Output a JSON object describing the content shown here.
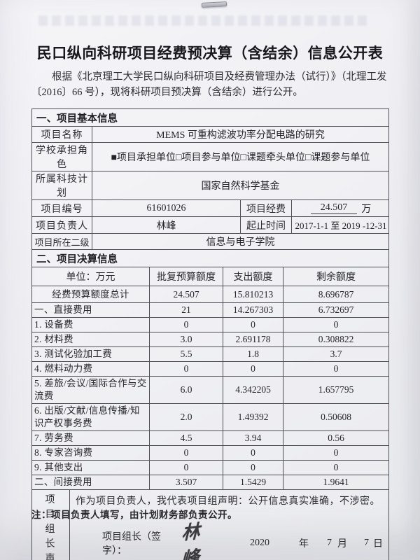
{
  "page": {
    "title": "民口纵向科研项目经费预决算（含结余）信息公开表",
    "intro": "根据《北京理工大学民口纵向科研项目及经费管理办法（试行）》（北理工发〔2016〕66 号），现将科研项目预决算（含结余）进行公开。",
    "footnote": "注：项目负责人填写，由计划财务部负责公开。"
  },
  "colors": {
    "paper": "#efeff3",
    "border": "#4e4e56",
    "ink": "#26262b"
  },
  "basic_info": {
    "section_title": "一、项目基本信息",
    "fields": {
      "project_name_label": "项目名称",
      "project_name": "MEMS 可重构滤波功率分配电路的研究",
      "school_role_label": "学校承担角色",
      "school_role": "■项目承担单位□项目参与单位□课题牵头单位□课题参与单位",
      "school_role_options": [
        {
          "checked": true,
          "label": "项目承担单位"
        },
        {
          "checked": false,
          "label": "项目参与单位"
        },
        {
          "checked": false,
          "label": "课题牵头单位"
        },
        {
          "checked": false,
          "label": "课题参与单位"
        }
      ],
      "program_label": "所属科技计划",
      "program": "国家自然科学基金",
      "project_no_label": "项目编号",
      "project_no": "61601026",
      "funding_label": "项目经费",
      "funding_value": "24.507",
      "funding_unit": "万",
      "pi_label": "项目负责人",
      "pi": "林峰",
      "duration_label": "起止时间",
      "duration": "2017-1-1 至 2019 -12-31",
      "dept_label": "项目所在二级",
      "dept": "信息与电子学院"
    }
  },
  "budget": {
    "section_title": "二、项目决算信息",
    "headers": [
      "单位：万元",
      "批复预算额度",
      "支出额度",
      "剩余额度"
    ],
    "rows": [
      {
        "label": "经费预算额度总计",
        "approved": "24.507",
        "spent": "15.810213",
        "remaining": "8.696787"
      },
      {
        "label": "一、直接费用",
        "approved": "21",
        "spent": "14.267303",
        "remaining": "6.732697"
      },
      {
        "label": "1. 设备费",
        "approved": "0",
        "spent": "0",
        "remaining": "0"
      },
      {
        "label": "2. 材料费",
        "approved": "3.0",
        "spent": "2.691178",
        "remaining": "0.308822"
      },
      {
        "label": "3. 测试化验加工费",
        "approved": "5.5",
        "spent": "1.8",
        "remaining": "3.7"
      },
      {
        "label": "4. 燃料动力费",
        "approved": "0",
        "spent": "0",
        "remaining": "0"
      },
      {
        "label": "5. 差旅/会议/国际合作与交流费",
        "approved": "6.0",
        "spent": "4.342205",
        "remaining": "1.657795"
      },
      {
        "label": "6. 出版/文献/信息传播/知识产权事务费",
        "approved": "2.0",
        "spent": "1.49392",
        "remaining": "0.50608"
      },
      {
        "label": "7. 劳务费",
        "approved": "4.5",
        "spent": "3.94",
        "remaining": "0.56"
      },
      {
        "label": "8. 专家咨询费",
        "approved": "0",
        "spent": "0",
        "remaining": "0"
      },
      {
        "label": "9. 其他支出",
        "approved": "0",
        "spent": "0",
        "remaining": "0"
      },
      {
        "label": "二、间接费用",
        "approved": "3.507",
        "spent": "1.5429",
        "remaining": "1.9641"
      }
    ]
  },
  "declaration": {
    "side_label": "项目组长声明",
    "statement": "作为项目负责人，我代表项目组声明：公开信息真实准确，不涉密。",
    "sign_label": "项目组长（签字）：",
    "signature": "林峰",
    "date": {
      "year": "2020",
      "year_unit": "年",
      "month": "7",
      "month_unit": "月",
      "day": "7",
      "day_unit": "日"
    }
  }
}
